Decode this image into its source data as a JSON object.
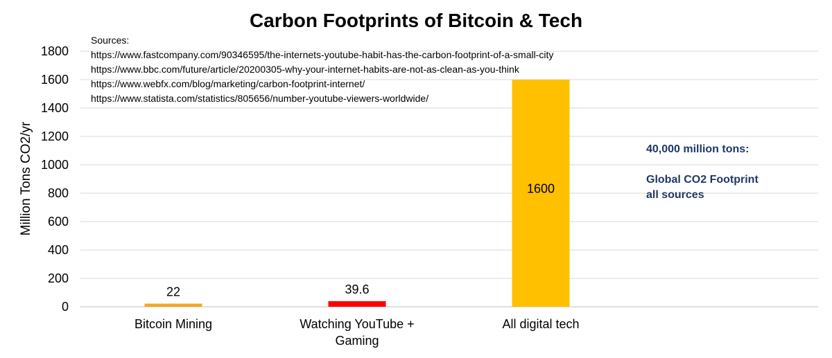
{
  "chart_data": {
    "type": "bar",
    "title": "Carbon Footprints of Bitcoin & Tech",
    "ylabel": "Million Tons CO2/yr",
    "xlabel": "",
    "ylim": [
      0,
      1800
    ],
    "yticks": [
      0,
      200,
      400,
      600,
      800,
      1000,
      1200,
      1400,
      1600,
      1800
    ],
    "grid": true,
    "categories": [
      [
        "Bitcoin Mining"
      ],
      [
        "Watching YouTube +",
        "Gaming"
      ],
      [
        "All digital tech"
      ]
    ],
    "values": [
      22,
      39.6,
      1600
    ],
    "data_labels": [
      "22",
      "39.6",
      "1600"
    ],
    "bar_colors": [
      "#f5a623",
      "#ff0000",
      "#ffc000"
    ],
    "sources_label": "Sources:",
    "sources": [
      "https://www.fastcompany.com/90346595/the-internets-youtube-habit-has-the-carbon-footprint-of-a-small-city",
      "https://www.bbc.com/future/article/20200305-why-your-internet-habits-are-not-as-clean-as-you-think",
      "https://www.webfx.com/blog/marketing/carbon-footprint-internet/",
      "https://www.statista.com/statistics/805656/number-youtube-viewers-worldwide/"
    ],
    "annotation": {
      "line1": "40,000 million tons:",
      "line2": "Global CO2 Footprint",
      "line3": "all sources",
      "color": "#1f3864"
    }
  }
}
